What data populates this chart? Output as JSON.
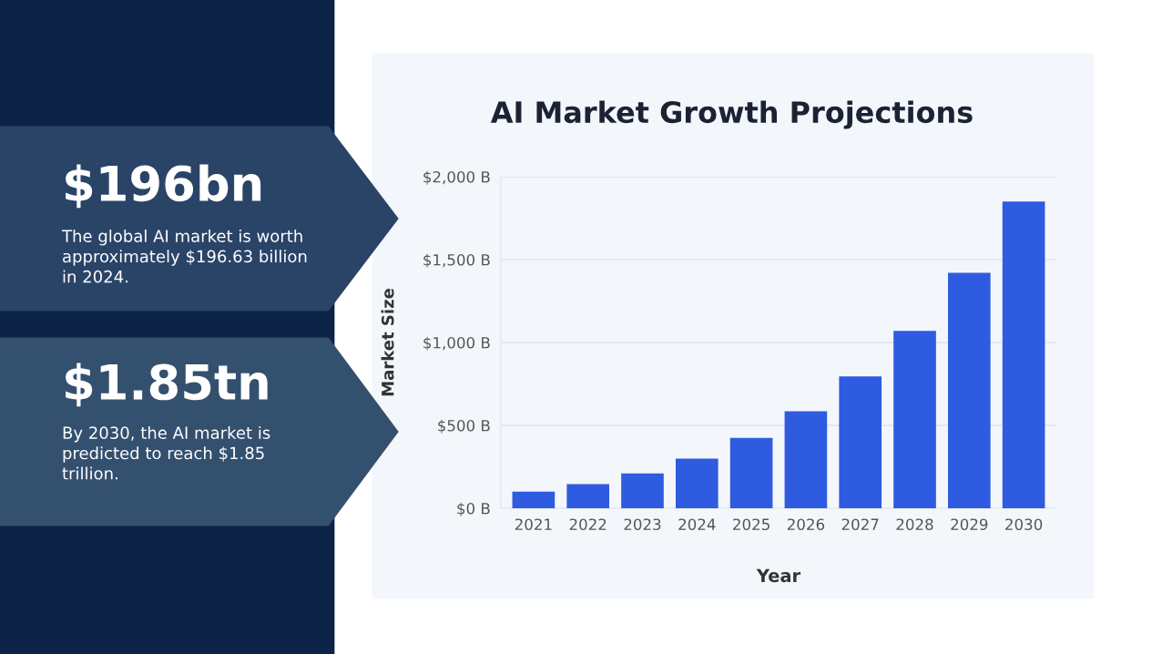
{
  "chart_data": {
    "type": "bar",
    "title": "AI Market Growth Projections",
    "xlabel": "Year",
    "ylabel": "Market Size",
    "categories": [
      "2021",
      "2022",
      "2023",
      "2024",
      "2025",
      "2026",
      "2027",
      "2028",
      "2029",
      "2030"
    ],
    "values": [
      100,
      145,
      210,
      300,
      425,
      585,
      795,
      1070,
      1420,
      1850
    ],
    "color": "#2f5be0",
    "ylim": [
      0,
      2000
    ],
    "yticks": [
      {
        "value": 0,
        "label": "$0 B"
      },
      {
        "value": 500,
        "label": "$500 B"
      },
      {
        "value": 1000,
        "label": "$1,000 B"
      },
      {
        "value": 1500,
        "label": "$1,500 B"
      },
      {
        "value": 2000,
        "label": "$2,000 B"
      }
    ],
    "grid": "y",
    "annotations": [
      "$196bn",
      "The global AI market is worth\napproximately $196.63 billion\nin 2024.",
      "$1.85tn",
      "By 2030, the AI market is\npredicted to reach $1.85\ntrillion."
    ]
  }
}
